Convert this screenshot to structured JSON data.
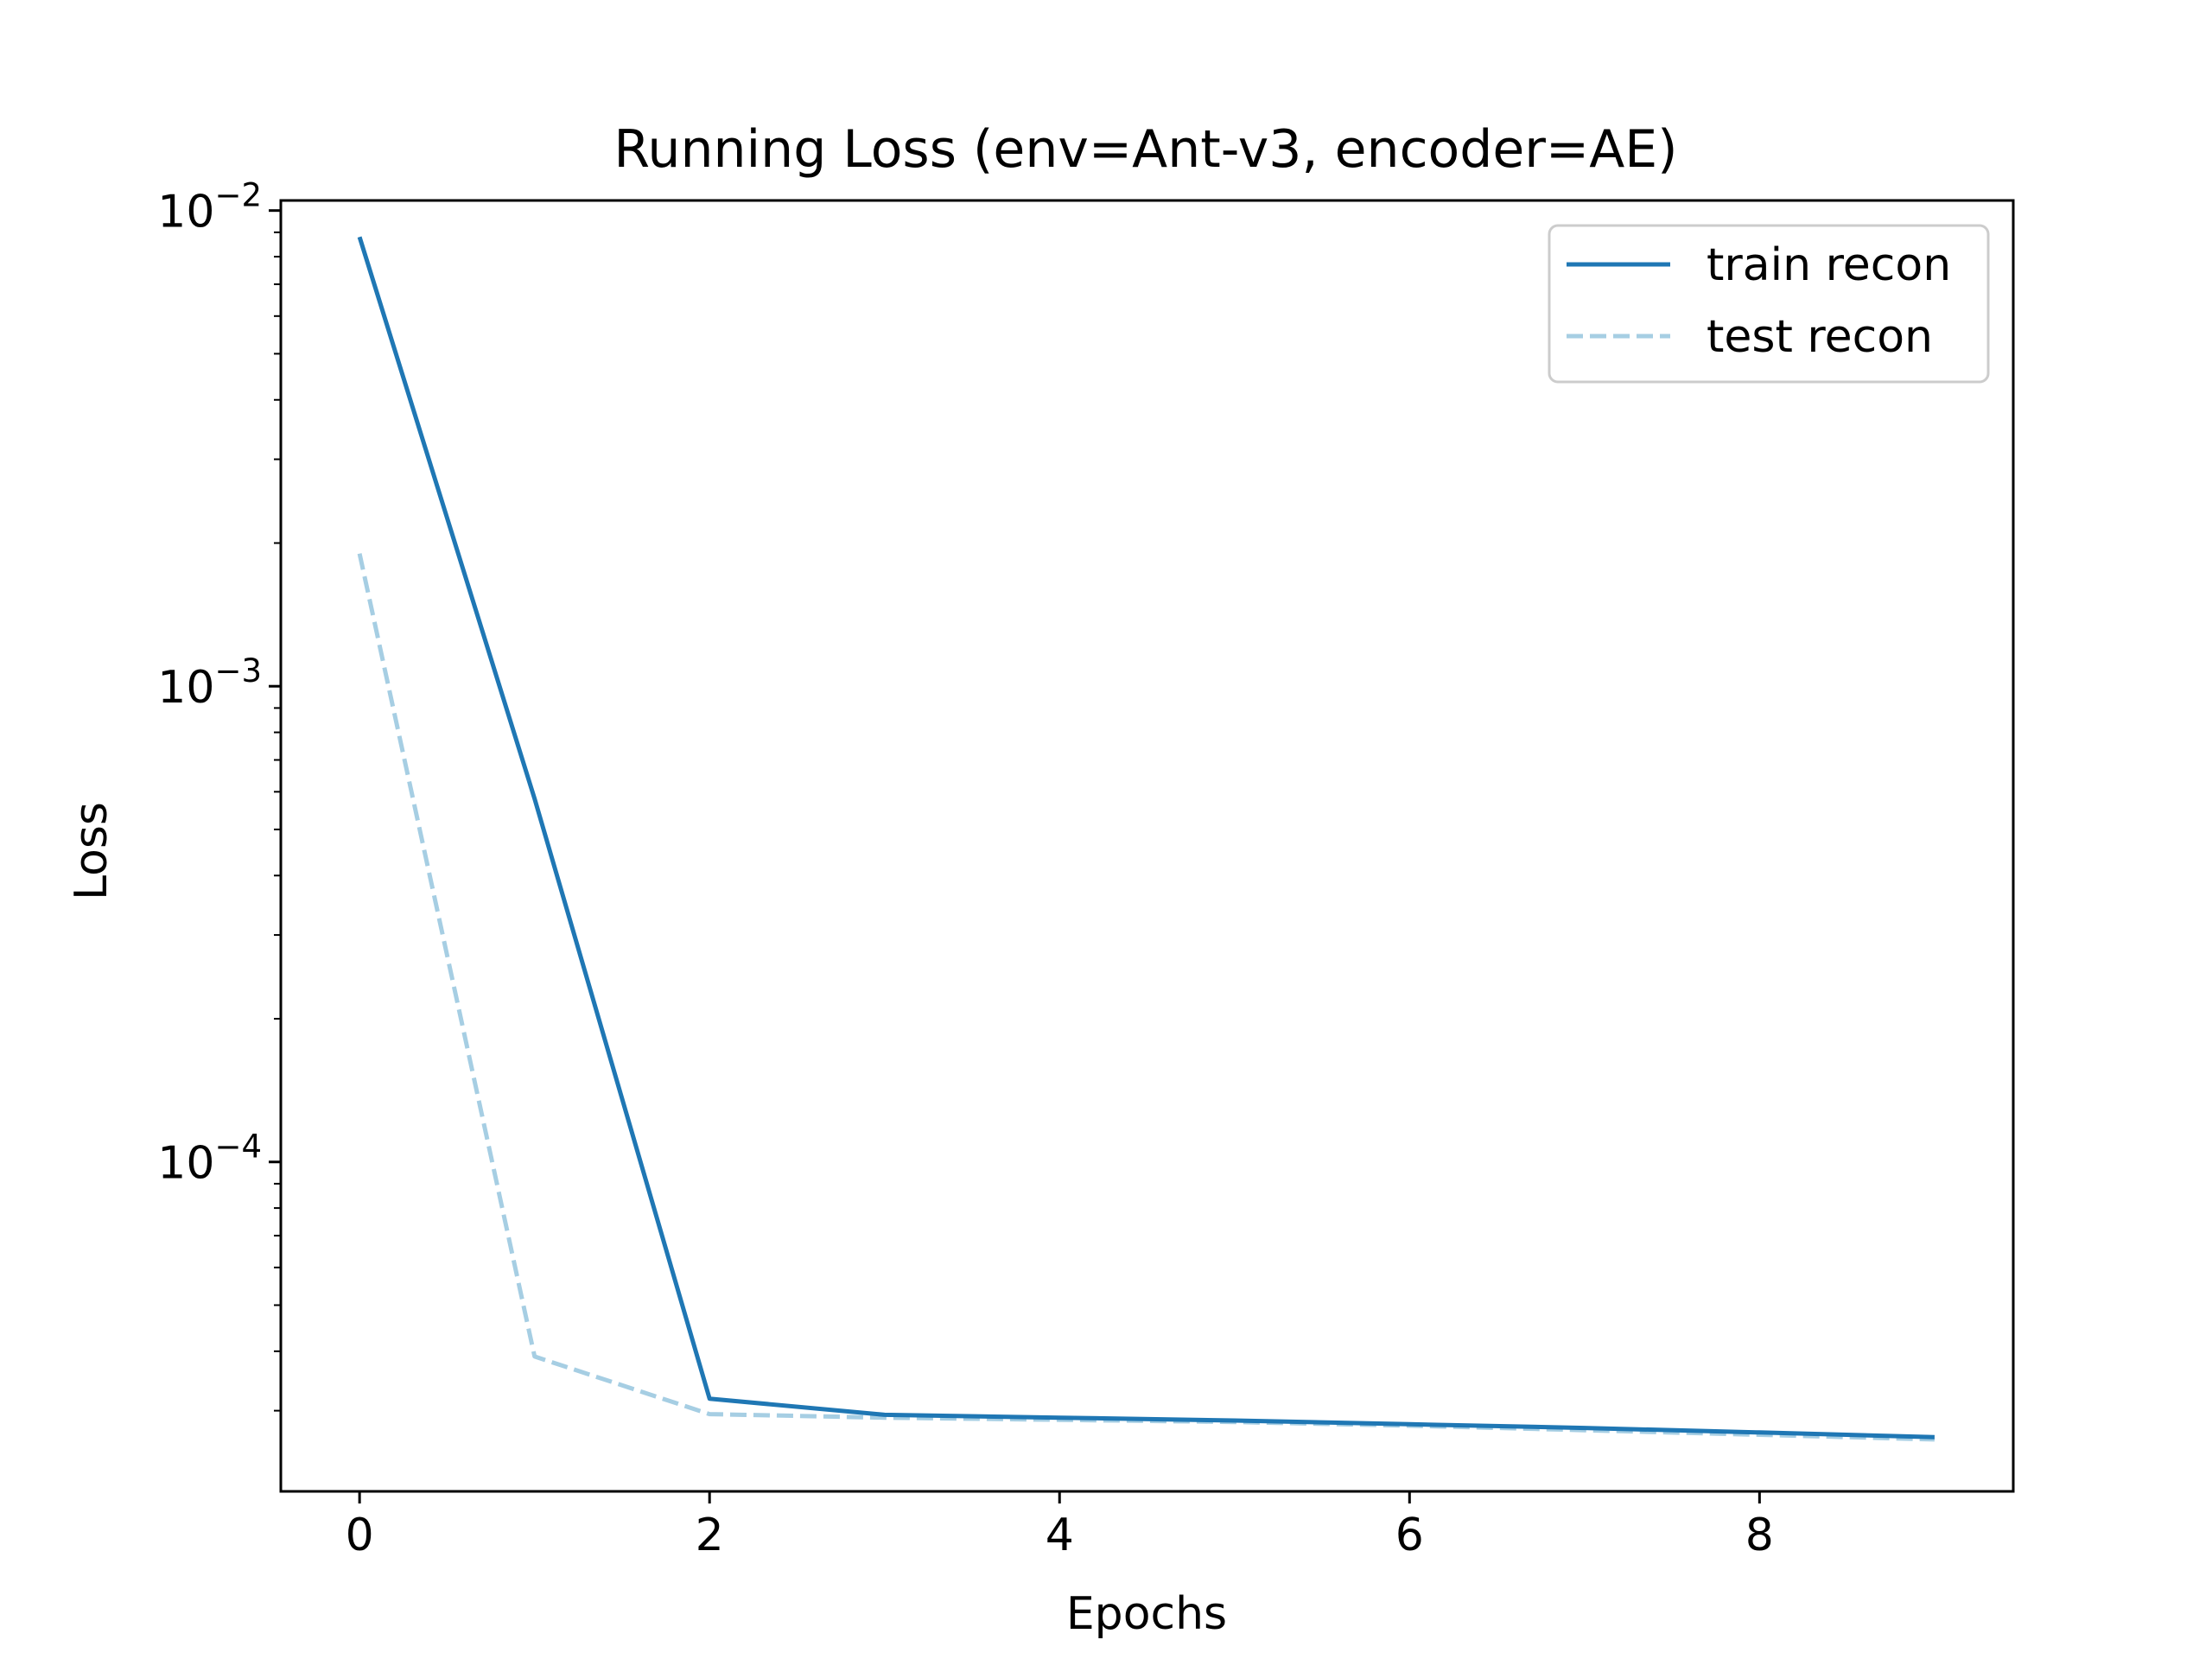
{
  "chart_data": {
    "type": "line",
    "title": "Running Loss (env=Ant-v3, encoder=AE)",
    "xlabel": "Epochs",
    "ylabel": "Loss",
    "xlim": [
      -0.45,
      9.45
    ],
    "ylim": [
      2.03e-05,
      0.0105
    ],
    "yscale": "log",
    "grid": false,
    "legend_position": "top-right",
    "x_ticks": [
      {
        "value": 0,
        "label": "0"
      },
      {
        "value": 2,
        "label": "2"
      },
      {
        "value": 4,
        "label": "4"
      },
      {
        "value": 6,
        "label": "6"
      },
      {
        "value": 8,
        "label": "8"
      }
    ],
    "y_ticks": [
      {
        "value": 0.01,
        "base": "10",
        "exp": "−2"
      },
      {
        "value": 0.001,
        "base": "10",
        "exp": "−3"
      },
      {
        "value": 0.0001,
        "base": "10",
        "exp": "−4"
      }
    ],
    "x": [
      0,
      1,
      2,
      3,
      4,
      5,
      6,
      7,
      8,
      9
    ],
    "series": [
      {
        "name": "train recon",
        "color": "#1f77b4",
        "style": "solid",
        "values": [
          0.0088,
          0.00058,
          3.18e-05,
          2.94e-05,
          2.9e-05,
          2.86e-05,
          2.81e-05,
          2.76e-05,
          2.7e-05,
          2.64e-05
        ]
      },
      {
        "name": "test recon",
        "color": "#a6cee3",
        "style": "dashed",
        "values": [
          0.0019,
          3.9e-05,
          2.95e-05,
          2.9e-05,
          2.87e-05,
          2.84e-05,
          2.79e-05,
          2.73e-05,
          2.67e-05,
          2.61e-05
        ]
      }
    ]
  }
}
